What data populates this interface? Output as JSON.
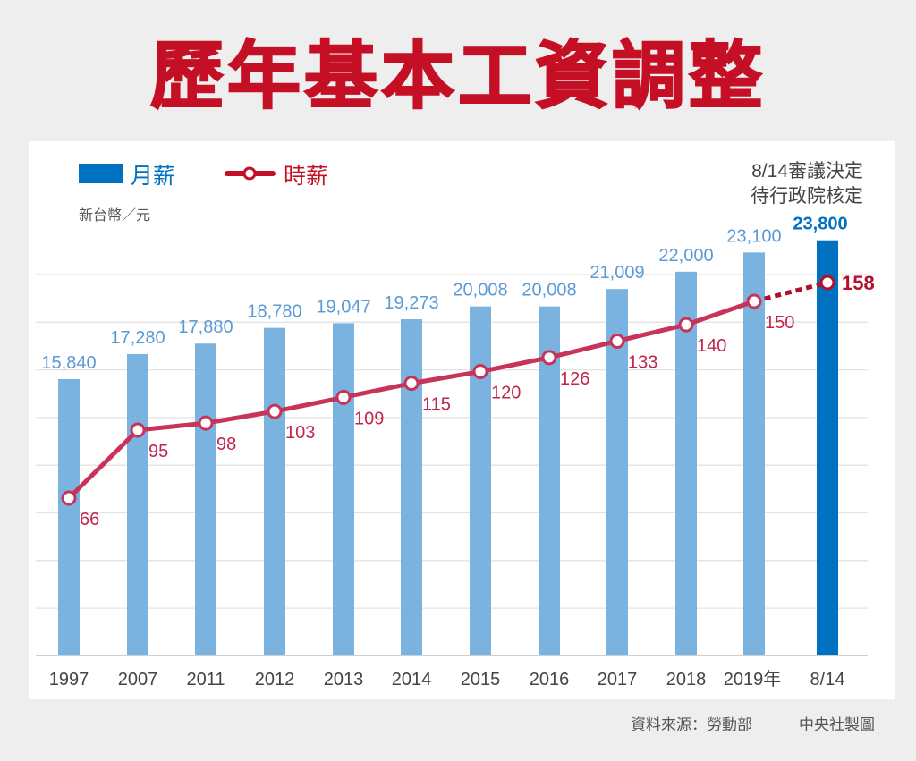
{
  "title": "歷年基本工資調整",
  "footer": {
    "source": "資料來源：勞動部",
    "credit": "中央社製圖"
  },
  "chart_data": {
    "type": "bar+line",
    "title": "歷年基本工資調整",
    "unit_label": "新台幣／元",
    "annotation": [
      "8/14審議決定",
      "待行政院核定"
    ],
    "categories": [
      "1997",
      "2007",
      "2011",
      "2012",
      "2013",
      "2014",
      "2015",
      "2016",
      "2017",
      "2018",
      "2019年",
      "8/14"
    ],
    "series": [
      {
        "name": "月薪",
        "type": "bar",
        "color": "#7ab3e0",
        "highlight_color": "#0070c0",
        "values": [
          15840,
          17280,
          17880,
          18780,
          19047,
          19273,
          20008,
          20008,
          21009,
          22000,
          23100,
          23800
        ],
        "labels": [
          "15,840",
          "17,280",
          "17,880",
          "18,780",
          "19,047",
          "19,273",
          "20,008",
          "20,008",
          "21,009",
          "22,000",
          "23,100",
          "23,800"
        ]
      },
      {
        "name": "時薪",
        "type": "line",
        "color": "#c8335a",
        "highlight_color": "#b5102a",
        "values": [
          66,
          95,
          98,
          103,
          109,
          115,
          120,
          126,
          133,
          140,
          150,
          158
        ],
        "labels": [
          "66",
          "95",
          "98",
          "103",
          "109",
          "115",
          "120",
          "126",
          "133",
          "140",
          "150",
          "158"
        ]
      }
    ],
    "highlighted_category": "8/14",
    "dashed_last_segment": true,
    "grid": true,
    "legend": "top-left"
  }
}
